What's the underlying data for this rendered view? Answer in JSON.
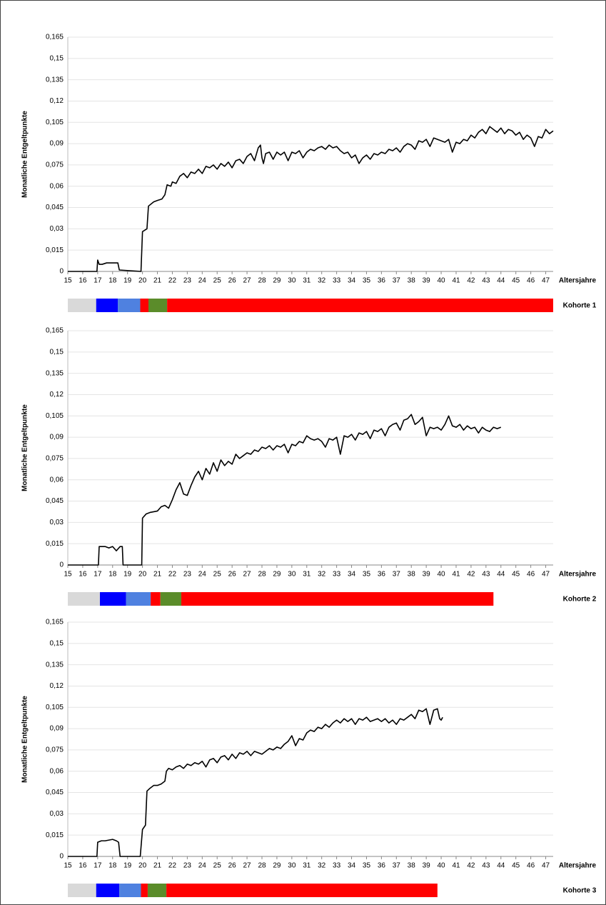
{
  "chart_data": [
    {
      "type": "line",
      "label": "Kohorte 1",
      "ylabel": "Monatliche Entgeltpunkte",
      "xlabel": "Altersjahre",
      "xlim": [
        15,
        47.5
      ],
      "ylim": [
        0,
        0.165
      ],
      "xticks": [
        15,
        16,
        17,
        18,
        19,
        20,
        21,
        22,
        23,
        24,
        25,
        26,
        27,
        28,
        29,
        30,
        31,
        32,
        33,
        34,
        35,
        36,
        37,
        38,
        39,
        40,
        41,
        42,
        43,
        44,
        45,
        46,
        47
      ],
      "yticks": [
        0,
        {
          "value": 0.015,
          "label": "0,015"
        },
        {
          "value": 0.03,
          "label": "0,03"
        },
        {
          "value": 0.045,
          "label": "0,045"
        },
        {
          "value": 0.06,
          "label": "0,06"
        },
        {
          "value": 0.075,
          "label": "0,075"
        },
        {
          "value": 0.09,
          "label": "0,09"
        },
        {
          "value": 0.105,
          "label": "0,105"
        },
        {
          "value": 0.12,
          "label": "0,12"
        },
        {
          "value": 0.135,
          "label": "0,135"
        },
        {
          "value": 0.15,
          "label": "0,15"
        },
        {
          "value": 0.165,
          "label": "0,165"
        }
      ],
      "grid": true,
      "color": "#000000",
      "x": [
        15,
        16,
        16.95,
        17,
        17.1,
        17.3,
        17.6,
        18,
        18.35,
        18.45,
        19.9,
        20,
        20.3,
        20.4,
        20.75,
        21,
        21.3,
        21.5,
        21.65,
        21.9,
        22,
        22.25,
        22.5,
        22.75,
        23,
        23.25,
        23.5,
        23.75,
        24,
        24.25,
        24.5,
        24.75,
        25,
        25.25,
        25.5,
        25.75,
        26,
        26.25,
        26.5,
        26.75,
        27,
        27.25,
        27.5,
        27.75,
        27.9,
        28,
        28.1,
        28.25,
        28.5,
        28.75,
        29,
        29.25,
        29.5,
        29.75,
        30,
        30.25,
        30.5,
        30.75,
        31,
        31.25,
        31.5,
        31.75,
        32,
        32.25,
        32.5,
        32.75,
        33,
        33.25,
        33.5,
        33.75,
        34,
        34.25,
        34.5,
        34.75,
        35,
        35.25,
        35.5,
        35.75,
        36,
        36.25,
        36.5,
        36.75,
        37,
        37.25,
        37.5,
        37.75,
        38,
        38.25,
        38.5,
        38.75,
        39,
        39.25,
        39.5,
        39.75,
        40,
        40.25,
        40.5,
        40.75,
        41,
        41.25,
        41.5,
        41.75,
        42,
        42.25,
        42.5,
        42.75,
        43,
        43.25,
        43.5,
        43.75,
        44,
        44.25,
        44.5,
        44.75,
        45,
        45.25,
        45.5,
        45.75,
        46,
        46.25,
        46.5,
        46.75,
        47,
        47.25,
        47.5
      ],
      "values": [
        0,
        0,
        0,
        0.008,
        0.005,
        0.005,
        0.006,
        0.006,
        0.006,
        0.001,
        0,
        0.028,
        0.03,
        0.046,
        0.049,
        0.05,
        0.051,
        0.054,
        0.061,
        0.06,
        0.063,
        0.062,
        0.067,
        0.069,
        0.066,
        0.07,
        0.069,
        0.072,
        0.069,
        0.074,
        0.073,
        0.075,
        0.072,
        0.076,
        0.074,
        0.077,
        0.073,
        0.078,
        0.079,
        0.076,
        0.081,
        0.083,
        0.078,
        0.087,
        0.089,
        0.08,
        0.076,
        0.083,
        0.084,
        0.079,
        0.084,
        0.082,
        0.084,
        0.078,
        0.084,
        0.083,
        0.085,
        0.08,
        0.084,
        0.086,
        0.085,
        0.087,
        0.088,
        0.086,
        0.089,
        0.087,
        0.088,
        0.085,
        0.083,
        0.084,
        0.08,
        0.082,
        0.076,
        0.08,
        0.082,
        0.079,
        0.083,
        0.082,
        0.084,
        0.083,
        0.086,
        0.085,
        0.087,
        0.084,
        0.088,
        0.09,
        0.089,
        0.086,
        0.092,
        0.091,
        0.093,
        0.088,
        0.094,
        0.093,
        0.092,
        0.091,
        0.093,
        0.084,
        0.091,
        0.09,
        0.093,
        0.092,
        0.096,
        0.094,
        0.098,
        0.1,
        0.097,
        0.102,
        0.1,
        0.098,
        0.101,
        0.097,
        0.1,
        0.099,
        0.096,
        0.098,
        0.093,
        0.096,
        0.094,
        0.088,
        0.095,
        0.094,
        0.1,
        0.097,
        0.099
      ],
      "segments": [
        {
          "start": 15,
          "end": 16.9,
          "color": "#d9d9d9"
        },
        {
          "start": 16.9,
          "end": 18.35,
          "color": "#0000ff"
        },
        {
          "start": 18.35,
          "end": 19.85,
          "color": "#4f81e0"
        },
        {
          "start": 19.85,
          "end": 20.4,
          "color": "#ff0000"
        },
        {
          "start": 20.4,
          "end": 21.65,
          "color": "#5b8c2a"
        },
        {
          "start": 21.65,
          "end": 47.5,
          "color": "#ff0000"
        }
      ]
    },
    {
      "type": "line",
      "label": "Kohorte 2",
      "ylabel": "Monatliche Entgeltpunkte",
      "xlabel": "Altersjahre",
      "xlim": [
        15,
        47.5
      ],
      "ylim": [
        0,
        0.165
      ],
      "xticks": [
        15,
        16,
        17,
        18,
        19,
        20,
        21,
        22,
        23,
        24,
        25,
        26,
        27,
        28,
        29,
        30,
        31,
        32,
        33,
        34,
        35,
        36,
        37,
        38,
        39,
        40,
        41,
        42,
        43,
        44,
        45,
        46,
        47
      ],
      "yticks": [
        0,
        {
          "value": 0.015,
          "label": "0,015"
        },
        {
          "value": 0.03,
          "label": "0,03"
        },
        {
          "value": 0.045,
          "label": "0,045"
        },
        {
          "value": 0.06,
          "label": "0,06"
        },
        {
          "value": 0.075,
          "label": "0,075"
        },
        {
          "value": 0.09,
          "label": "0,09"
        },
        {
          "value": 0.105,
          "label": "0,105"
        },
        {
          "value": 0.12,
          "label": "0,12"
        },
        {
          "value": 0.135,
          "label": "0,135"
        },
        {
          "value": 0.15,
          "label": "0,15"
        },
        {
          "value": 0.165,
          "label": "0,165"
        }
      ],
      "grid": true,
      "color": "#000000",
      "x": [
        15,
        17.05,
        17.1,
        17.5,
        17.75,
        18,
        18.25,
        18.5,
        18.65,
        18.7,
        19.95,
        20,
        20.25,
        20.5,
        21,
        21.25,
        21.5,
        21.75,
        22,
        22.25,
        22.5,
        22.75,
        23,
        23.25,
        23.5,
        23.75,
        24,
        24.25,
        24.5,
        24.75,
        25,
        25.25,
        25.5,
        25.75,
        26,
        26.25,
        26.5,
        26.75,
        27,
        27.25,
        27.5,
        27.75,
        28,
        28.25,
        28.5,
        28.75,
        29,
        29.25,
        29.5,
        29.75,
        30,
        30.25,
        30.5,
        30.75,
        31,
        31.25,
        31.5,
        31.75,
        32,
        32.25,
        32.5,
        32.75,
        33,
        33.25,
        33.5,
        33.75,
        34,
        34.25,
        34.5,
        34.75,
        35,
        35.25,
        35.5,
        35.75,
        36,
        36.25,
        36.5,
        36.75,
        37,
        37.25,
        37.5,
        37.75,
        38,
        38.25,
        38.5,
        38.75,
        39,
        39.25,
        39.5,
        39.75,
        40,
        40.25,
        40.5,
        40.75,
        41,
        41.25,
        41.5,
        41.75,
        42,
        42.25,
        42.5,
        42.75,
        43,
        43.25,
        43.5,
        43.75,
        44
      ],
      "values": [
        0,
        0,
        0.013,
        0.013,
        0.012,
        0.013,
        0.01,
        0.013,
        0.013,
        0,
        0,
        0.033,
        0.036,
        0.037,
        0.038,
        0.041,
        0.042,
        0.04,
        0.046,
        0.053,
        0.058,
        0.05,
        0.049,
        0.056,
        0.062,
        0.066,
        0.06,
        0.068,
        0.064,
        0.072,
        0.066,
        0.074,
        0.07,
        0.073,
        0.071,
        0.078,
        0.075,
        0.077,
        0.079,
        0.078,
        0.081,
        0.08,
        0.083,
        0.082,
        0.084,
        0.081,
        0.084,
        0.083,
        0.085,
        0.079,
        0.085,
        0.084,
        0.087,
        0.086,
        0.091,
        0.089,
        0.088,
        0.089,
        0.087,
        0.083,
        0.089,
        0.088,
        0.09,
        0.078,
        0.091,
        0.09,
        0.092,
        0.088,
        0.093,
        0.092,
        0.094,
        0.089,
        0.095,
        0.094,
        0.096,
        0.091,
        0.097,
        0.099,
        0.1,
        0.095,
        0.102,
        0.103,
        0.106,
        0.099,
        0.101,
        0.104,
        0.091,
        0.097,
        0.096,
        0.097,
        0.095,
        0.099,
        0.105,
        0.098,
        0.097,
        0.099,
        0.095,
        0.098,
        0.096,
        0.097,
        0.093,
        0.097,
        0.095,
        0.094,
        0.097,
        0.096,
        0.097
      ],
      "segments": [
        {
          "start": 15,
          "end": 17.15,
          "color": "#d9d9d9"
        },
        {
          "start": 17.15,
          "end": 18.9,
          "color": "#0000ff"
        },
        {
          "start": 18.9,
          "end": 20.55,
          "color": "#4f81e0"
        },
        {
          "start": 20.55,
          "end": 21.2,
          "color": "#ff0000"
        },
        {
          "start": 21.2,
          "end": 22.6,
          "color": "#5b8c2a"
        },
        {
          "start": 22.6,
          "end": 43.5,
          "color": "#ff0000"
        }
      ]
    },
    {
      "type": "line",
      "label": "Kohorte 3",
      "ylabel": "Monatliche Entgeltpunkte",
      "xlabel": "Altersjahre",
      "xlim": [
        15,
        47.5
      ],
      "ylim": [
        0,
        0.165
      ],
      "xticks": [
        15,
        16,
        17,
        18,
        19,
        20,
        21,
        22,
        23,
        24,
        25,
        26,
        27,
        28,
        29,
        30,
        31,
        32,
        33,
        34,
        35,
        36,
        37,
        38,
        39,
        40,
        41,
        42,
        43,
        44,
        45,
        46,
        47
      ],
      "yticks": [
        0,
        {
          "value": 0.015,
          "label": "0,015"
        },
        {
          "value": 0.03,
          "label": "0,03"
        },
        {
          "value": 0.045,
          "label": "0,045"
        },
        {
          "value": 0.06,
          "label": "0,06"
        },
        {
          "value": 0.075,
          "label": "0,075"
        },
        {
          "value": 0.09,
          "label": "0,09"
        },
        {
          "value": 0.105,
          "label": "0,105"
        },
        {
          "value": 0.12,
          "label": "0,12"
        },
        {
          "value": 0.135,
          "label": "0,135"
        },
        {
          "value": 0.15,
          "label": "0,15"
        },
        {
          "value": 0.165,
          "label": "0,165"
        }
      ],
      "grid": true,
      "color": "#000000",
      "x": [
        15,
        16.95,
        17,
        17.25,
        17.5,
        18,
        18.25,
        18.4,
        18.5,
        19.85,
        20,
        20.2,
        20.3,
        20.5,
        20.75,
        21,
        21.25,
        21.5,
        21.6,
        21.75,
        22,
        22.25,
        22.5,
        22.75,
        23,
        23.25,
        23.5,
        23.75,
        24,
        24.25,
        24.5,
        24.75,
        25,
        25.25,
        25.5,
        25.75,
        26,
        26.25,
        26.5,
        26.75,
        27,
        27.25,
        27.5,
        27.75,
        28,
        28.25,
        28.5,
        28.75,
        29,
        29.25,
        29.5,
        29.75,
        30,
        30.25,
        30.5,
        30.75,
        31,
        31.25,
        31.5,
        31.75,
        32,
        32.25,
        32.5,
        32.75,
        33,
        33.25,
        33.5,
        33.75,
        34,
        34.25,
        34.5,
        34.75,
        35,
        35.25,
        35.5,
        35.75,
        36,
        36.25,
        36.5,
        36.75,
        37,
        37.25,
        37.5,
        37.75,
        38,
        38.25,
        38.5,
        38.75,
        39,
        39.25,
        39.5,
        39.75,
        39.9,
        40,
        40.1
      ],
      "values": [
        0,
        0,
        0.01,
        0.011,
        0.011,
        0.012,
        0.011,
        0.01,
        0,
        0,
        0.019,
        0.022,
        0.046,
        0.048,
        0.05,
        0.05,
        0.051,
        0.053,
        0.06,
        0.062,
        0.061,
        0.063,
        0.064,
        0.062,
        0.065,
        0.064,
        0.066,
        0.065,
        0.067,
        0.063,
        0.068,
        0.069,
        0.066,
        0.07,
        0.071,
        0.068,
        0.072,
        0.069,
        0.073,
        0.072,
        0.074,
        0.071,
        0.074,
        0.073,
        0.072,
        0.074,
        0.076,
        0.075,
        0.077,
        0.076,
        0.079,
        0.081,
        0.085,
        0.078,
        0.083,
        0.082,
        0.087,
        0.089,
        0.088,
        0.091,
        0.09,
        0.093,
        0.091,
        0.094,
        0.096,
        0.094,
        0.097,
        0.095,
        0.097,
        0.093,
        0.097,
        0.096,
        0.098,
        0.095,
        0.096,
        0.097,
        0.095,
        0.097,
        0.094,
        0.096,
        0.093,
        0.097,
        0.096,
        0.098,
        0.1,
        0.097,
        0.103,
        0.102,
        0.104,
        0.093,
        0.103,
        0.104,
        0.097,
        0.096,
        0.098
      ],
      "segments": [
        {
          "start": 15,
          "end": 16.9,
          "color": "#d9d9d9"
        },
        {
          "start": 16.9,
          "end": 18.45,
          "color": "#0000ff"
        },
        {
          "start": 18.45,
          "end": 19.9,
          "color": "#4f81e0"
        },
        {
          "start": 19.9,
          "end": 20.35,
          "color": "#ff0000"
        },
        {
          "start": 20.35,
          "end": 21.6,
          "color": "#5b8c2a"
        },
        {
          "start": 21.6,
          "end": 39.75,
          "color": "#ff0000"
        }
      ]
    }
  ]
}
